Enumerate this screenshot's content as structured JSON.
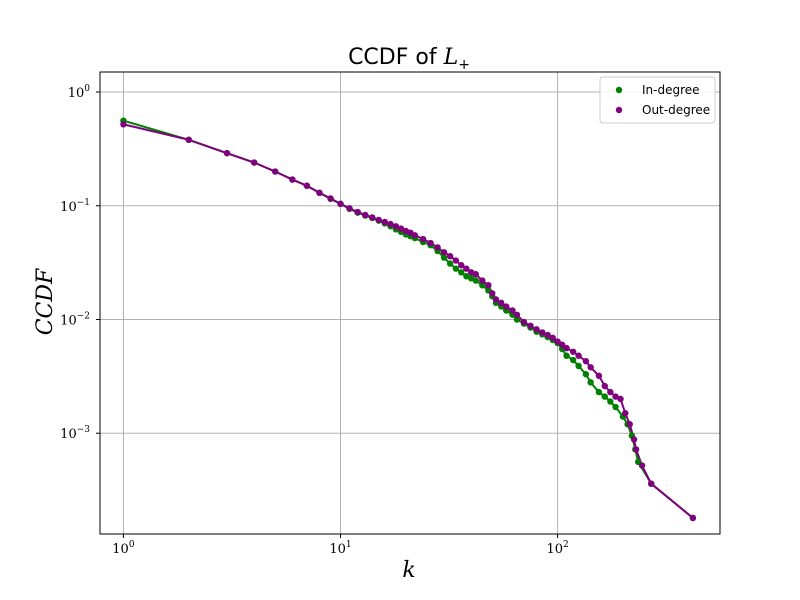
{
  "chart_data": {
    "type": "scatter",
    "title": "CCDF of ",
    "title_math": "L",
    "title_math_sub": "+",
    "xlabel": "k",
    "ylabel": "CCDF",
    "xscale": "log",
    "yscale": "log",
    "xlim": [
      0.78,
      560
    ],
    "ylim": [
      0.00013,
      1.5
    ],
    "grid": true,
    "legend_position": "top-right",
    "x_ticks": [
      {
        "value": 1,
        "base": "10",
        "exp": "0"
      },
      {
        "value": 10,
        "base": "10",
        "exp": "1"
      },
      {
        "value": 100,
        "base": "10",
        "exp": "2"
      }
    ],
    "y_ticks": [
      {
        "value": 1,
        "base": "10",
        "exp": "0"
      },
      {
        "value": 0.1,
        "base": "10",
        "exp": "−1"
      },
      {
        "value": 0.01,
        "base": "10",
        "exp": "−2"
      },
      {
        "value": 0.001,
        "base": "10",
        "exp": "−3"
      }
    ],
    "series": [
      {
        "name": "In-degree",
        "color": "#008000",
        "points": [
          [
            1,
            0.56
          ],
          [
            2,
            0.38
          ],
          [
            3,
            0.29
          ],
          [
            4,
            0.24
          ],
          [
            5,
            0.2
          ],
          [
            6,
            0.17
          ],
          [
            7,
            0.15
          ],
          [
            8,
            0.13
          ],
          [
            9,
            0.115
          ],
          [
            10,
            0.104
          ],
          [
            11,
            0.094
          ],
          [
            12,
            0.087
          ],
          [
            13,
            0.082
          ],
          [
            14,
            0.078
          ],
          [
            15,
            0.074
          ],
          [
            16,
            0.07
          ],
          [
            17,
            0.066
          ],
          [
            18,
            0.062
          ],
          [
            19,
            0.059
          ],
          [
            20,
            0.056
          ],
          [
            21,
            0.054
          ],
          [
            22,
            0.052
          ],
          [
            24,
            0.048
          ],
          [
            26,
            0.045
          ],
          [
            28,
            0.04
          ],
          [
            30,
            0.035
          ],
          [
            32,
            0.031
          ],
          [
            34,
            0.028
          ],
          [
            36,
            0.026
          ],
          [
            38,
            0.024
          ],
          [
            40,
            0.023
          ],
          [
            42,
            0.022
          ],
          [
            45,
            0.02
          ],
          [
            48,
            0.018
          ],
          [
            50,
            0.016
          ],
          [
            52,
            0.014
          ],
          [
            55,
            0.013
          ],
          [
            58,
            0.012
          ],
          [
            62,
            0.011
          ],
          [
            65,
            0.01
          ],
          [
            70,
            0.0092
          ],
          [
            75,
            0.0085
          ],
          [
            80,
            0.0078
          ],
          [
            85,
            0.0074
          ],
          [
            90,
            0.007
          ],
          [
            95,
            0.0066
          ],
          [
            100,
            0.0062
          ],
          [
            105,
            0.0055
          ],
          [
            110,
            0.0048
          ],
          [
            118,
            0.0044
          ],
          [
            125,
            0.0039
          ],
          [
            135,
            0.0033
          ],
          [
            142,
            0.0028
          ],
          [
            155,
            0.0023
          ],
          [
            165,
            0.0021
          ],
          [
            175,
            0.0019
          ],
          [
            185,
            0.0017
          ],
          [
            200,
            0.0014
          ],
          [
            210,
            0.0012
          ],
          [
            220,
            0.00095
          ],
          [
            228,
            0.00072
          ],
          [
            235,
            0.00056
          ],
          [
            270,
            0.00036
          ],
          [
            420,
            0.00018
          ]
        ]
      },
      {
        "name": "Out-degree",
        "color": "#800080",
        "points": [
          [
            1,
            0.52
          ],
          [
            2,
            0.38
          ],
          [
            3,
            0.29
          ],
          [
            4,
            0.24
          ],
          [
            5,
            0.2
          ],
          [
            6,
            0.17
          ],
          [
            7,
            0.15
          ],
          [
            8,
            0.13
          ],
          [
            9,
            0.116
          ],
          [
            10,
            0.104
          ],
          [
            11,
            0.095
          ],
          [
            12,
            0.088
          ],
          [
            13,
            0.083
          ],
          [
            14,
            0.079
          ],
          [
            15,
            0.075
          ],
          [
            16,
            0.072
          ],
          [
            17,
            0.069
          ],
          [
            18,
            0.066
          ],
          [
            19,
            0.063
          ],
          [
            20,
            0.06
          ],
          [
            21,
            0.058
          ],
          [
            22,
            0.055
          ],
          [
            24,
            0.051
          ],
          [
            26,
            0.047
          ],
          [
            28,
            0.043
          ],
          [
            30,
            0.039
          ],
          [
            32,
            0.036
          ],
          [
            34,
            0.033
          ],
          [
            36,
            0.03
          ],
          [
            38,
            0.028
          ],
          [
            40,
            0.026
          ],
          [
            42,
            0.025
          ],
          [
            45,
            0.022
          ],
          [
            48,
            0.02
          ],
          [
            50,
            0.017
          ],
          [
            52,
            0.015
          ],
          [
            55,
            0.014
          ],
          [
            58,
            0.013
          ],
          [
            62,
            0.012
          ],
          [
            65,
            0.011
          ],
          [
            70,
            0.0095
          ],
          [
            75,
            0.0088
          ],
          [
            80,
            0.0082
          ],
          [
            85,
            0.0077
          ],
          [
            90,
            0.0073
          ],
          [
            95,
            0.0069
          ],
          [
            100,
            0.0064
          ],
          [
            105,
            0.006
          ],
          [
            110,
            0.0056
          ],
          [
            118,
            0.0052
          ],
          [
            125,
            0.0048
          ],
          [
            135,
            0.0043
          ],
          [
            142,
            0.0038
          ],
          [
            155,
            0.0032
          ],
          [
            165,
            0.0026
          ],
          [
            175,
            0.0023
          ],
          [
            185,
            0.0021
          ],
          [
            195,
            0.002
          ],
          [
            205,
            0.0015
          ],
          [
            215,
            0.0012
          ],
          [
            225,
            0.00088
          ],
          [
            230,
            0.00072
          ],
          [
            245,
            0.00052
          ],
          [
            270,
            0.00036
          ],
          [
            420,
            0.00018
          ]
        ]
      }
    ]
  }
}
